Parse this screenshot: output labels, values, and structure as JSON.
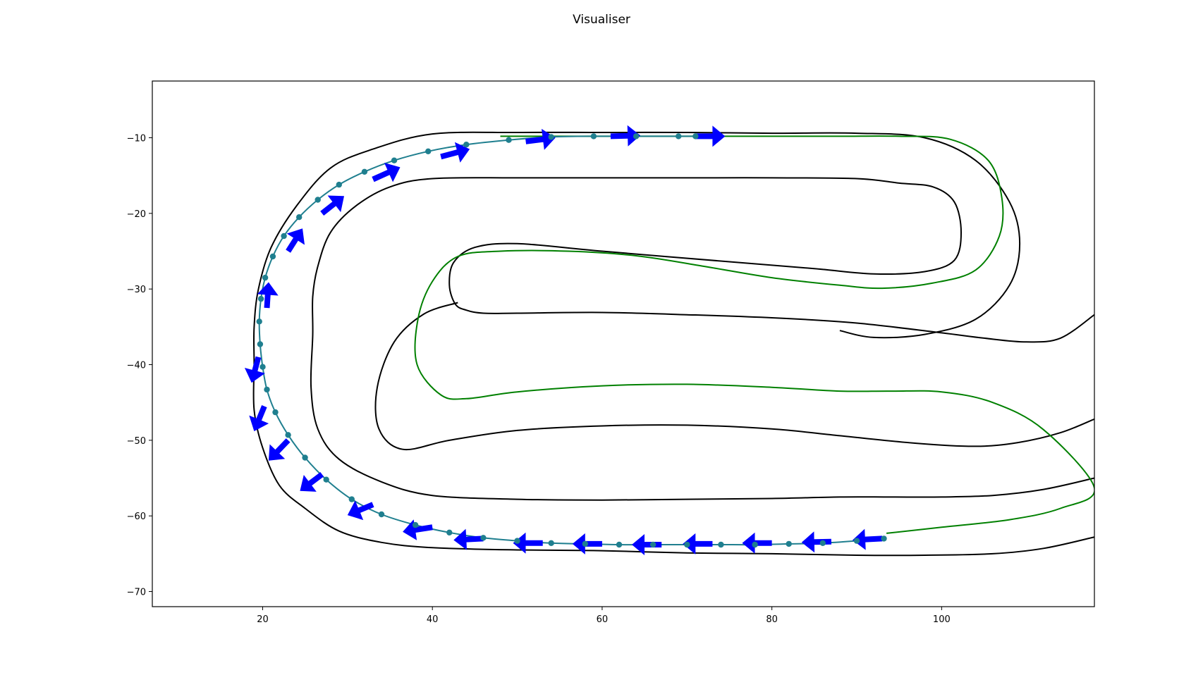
{
  "figure": {
    "title": "Visualiser"
  },
  "chart_data": {
    "type": "line",
    "title": "Visualiser",
    "xlabel": "",
    "ylabel": "",
    "xlim": [
      7,
      118
    ],
    "ylim": [
      -72,
      -2.5
    ],
    "grid": false,
    "xticks": [
      20,
      40,
      60,
      80,
      100
    ],
    "yticks": [
      -10,
      -20,
      -30,
      -40,
      -50,
      -60,
      -70
    ],
    "xtick_labels": [
      "20",
      "40",
      "60",
      "80",
      "100"
    ],
    "ytick_labels": [
      "−10",
      "−20",
      "−30",
      "−40",
      "−50",
      "−60",
      "−70"
    ],
    "colors": {
      "boundary": "#000000",
      "centerline": "#008000",
      "path_points": "#1f7f8f",
      "arrows": "#0000ff"
    },
    "series": [
      {
        "role": "track-outer-boundary",
        "color": "#000000",
        "x": [
          118,
          112,
          106,
          98,
          90,
          80,
          70,
          60,
          50,
          40,
          34,
          29,
          25,
          22,
          20,
          19,
          19,
          19,
          19.5,
          21,
          24,
          28,
          33,
          40,
          50,
          60,
          70,
          80,
          90,
          98,
          104,
          108,
          109.2,
          108,
          104,
          98,
          92,
          88
        ],
        "y": [
          -62.8,
          -64.3,
          -65,
          -65.2,
          -65.2,
          -65,
          -64.9,
          -64.6,
          -64.5,
          -64.2,
          -63.5,
          -62,
          -59,
          -56,
          -51,
          -46,
          -40,
          -35,
          -30,
          -24.5,
          -19,
          -14,
          -11.5,
          -9.5,
          -9.3,
          -9.3,
          -9.3,
          -9.4,
          -9.4,
          -10,
          -13,
          -18.5,
          -24,
          -29.5,
          -34,
          -36,
          -36.4,
          -35.5
        ]
      },
      {
        "role": "track-inner-boundary",
        "color": "#000000",
        "x": [
          118,
          112,
          106,
          100,
          94,
          88,
          80,
          70,
          60,
          50,
          40,
          34,
          29,
          26.5,
          25.7,
          25.9,
          25.9,
          26.5,
          28,
          31,
          35,
          40,
          50,
          60,
          70,
          80,
          90,
          95,
          99,
          101.5,
          102.3,
          101.5,
          98,
          92,
          85,
          75,
          60,
          50,
          45,
          42.5,
          42,
          42.7,
          44,
          46,
          50,
          60,
          70,
          80,
          90,
          100,
          105,
          110,
          114,
          118
        ],
        "y": [
          -55,
          -56.5,
          -57.3,
          -57.5,
          -57.5,
          -57.5,
          -57.7,
          -57.8,
          -57.9,
          -57.8,
          -57.3,
          -55.5,
          -52.5,
          -48.5,
          -43,
          -36,
          -31,
          -27,
          -22.5,
          -19,
          -16.5,
          -15.4,
          -15.3,
          -15.3,
          -15.3,
          -15.3,
          -15.4,
          -16,
          -16.5,
          -18.5,
          -22.5,
          -26.2,
          -27.7,
          -28,
          -27.3,
          -26.4,
          -25,
          -24,
          -24.5,
          -26.5,
          -29.5,
          -32,
          -32.8,
          -33.2,
          -33.2,
          -33.1,
          -33.4,
          -33.8,
          -34.5,
          -35.8,
          -36.5,
          -37,
          -36.5,
          -33.4
        ]
      },
      {
        "role": "hairpin-inner-boundary",
        "color": "#000000",
        "x": [
          118,
          114,
          109,
          104,
          97,
          88,
          80,
          70,
          60,
          50,
          42,
          36.5,
          33.7,
          33.5,
          35.5,
          39,
          43
        ],
        "y": [
          -47.2,
          -49,
          -50.3,
          -50.8,
          -50.4,
          -49.4,
          -48.5,
          -48,
          -48.1,
          -48.7,
          -50,
          -51.2,
          -48.5,
          -43,
          -37,
          -33.3,
          -31.8
        ]
      },
      {
        "role": "centerline",
        "color": "#008000",
        "x": [
          93.5,
          100,
          108,
          114,
          118,
          112,
          106,
          100,
          94,
          88,
          80,
          70,
          60,
          50,
          44,
          41,
          38.2,
          38.3,
          40,
          43,
          48,
          56,
          64,
          72,
          80,
          88,
          93,
          99,
          104,
          106.8,
          107.1,
          105.5,
          101,
          95,
          88,
          80,
          72,
          60,
          53,
          48
        ],
        "y": [
          -62.3,
          -61.5,
          -60.5,
          -59,
          -56.3,
          -48.6,
          -45,
          -43.6,
          -43.5,
          -43.5,
          -43,
          -42.6,
          -42.8,
          -43.6,
          -44.5,
          -44,
          -40,
          -34,
          -29,
          -25.7,
          -25,
          -25,
          -25.6,
          -27,
          -28.5,
          -29.5,
          -29.9,
          -29.2,
          -27.5,
          -23,
          -18,
          -13,
          -10.2,
          -9.8,
          -9.8,
          -9.8,
          -9.8,
          -9.8,
          -9.8,
          -9.8
        ]
      },
      {
        "role": "sampled-path",
        "color": "#1f7f8f",
        "marker": "circle",
        "x": [
          93.2,
          90,
          86,
          82,
          78,
          74,
          70,
          66,
          62,
          58,
          54,
          50,
          46,
          42,
          38,
          34,
          30.5,
          27.5,
          25,
          23,
          21.5,
          20.5,
          20,
          19.7,
          19.6,
          19.8,
          20.3,
          21.2,
          22.5,
          24.3,
          26.5,
          29,
          32,
          35.5,
          39.5,
          44,
          49,
          54,
          59,
          64,
          69,
          71
        ],
        "y": [
          -63,
          -63.3,
          -63.6,
          -63.7,
          -63.8,
          -63.8,
          -63.8,
          -63.8,
          -63.8,
          -63.7,
          -63.6,
          -63.3,
          -62.9,
          -62.2,
          -61.2,
          -59.8,
          -57.8,
          -55.2,
          -52.3,
          -49.3,
          -46.3,
          -43.3,
          -40.3,
          -37.3,
          -34.3,
          -31.3,
          -28.5,
          -25.7,
          -23,
          -20.5,
          -18.2,
          -16.2,
          -14.5,
          -13,
          -11.8,
          -10.9,
          -10.3,
          -9.9,
          -9.8,
          -9.8,
          -9.8,
          -9.8
        ]
      }
    ],
    "arrows": {
      "color": "#0000ff",
      "x": [
        93,
        87,
        80,
        73,
        67,
        60,
        53,
        46,
        40,
        33,
        27,
        23,
        20.2,
        19.5,
        20.5,
        23,
        27,
        33,
        41,
        51,
        61,
        71
      ],
      "y": [
        -63,
        -63.4,
        -63.6,
        -63.7,
        -63.8,
        -63.7,
        -63.6,
        -63,
        -61.5,
        -58.5,
        -54.5,
        -50,
        -45.5,
        -39,
        -32.5,
        -25,
        -20,
        -15.5,
        -12.5,
        -10.5,
        -9.8,
        -9.8
      ],
      "dx": [
        -3.5,
        -3.5,
        -3.5,
        -3.5,
        -3.5,
        -3.5,
        -3.5,
        -3.5,
        -3.5,
        -3,
        -2.6,
        -2.3,
        -1.2,
        -0.8,
        0.2,
        1.7,
        2.6,
        3.2,
        3.4,
        3.5,
        3.5,
        3.5
      ],
      "dy": [
        -0.2,
        -0.1,
        0,
        0,
        0,
        0,
        0,
        -0.2,
        -0.6,
        -1.4,
        -2.2,
        -2.7,
        -3.3,
        -3.4,
        3.4,
        3,
        2.3,
        1.6,
        1,
        0.5,
        0.1,
        0
      ]
    }
  }
}
